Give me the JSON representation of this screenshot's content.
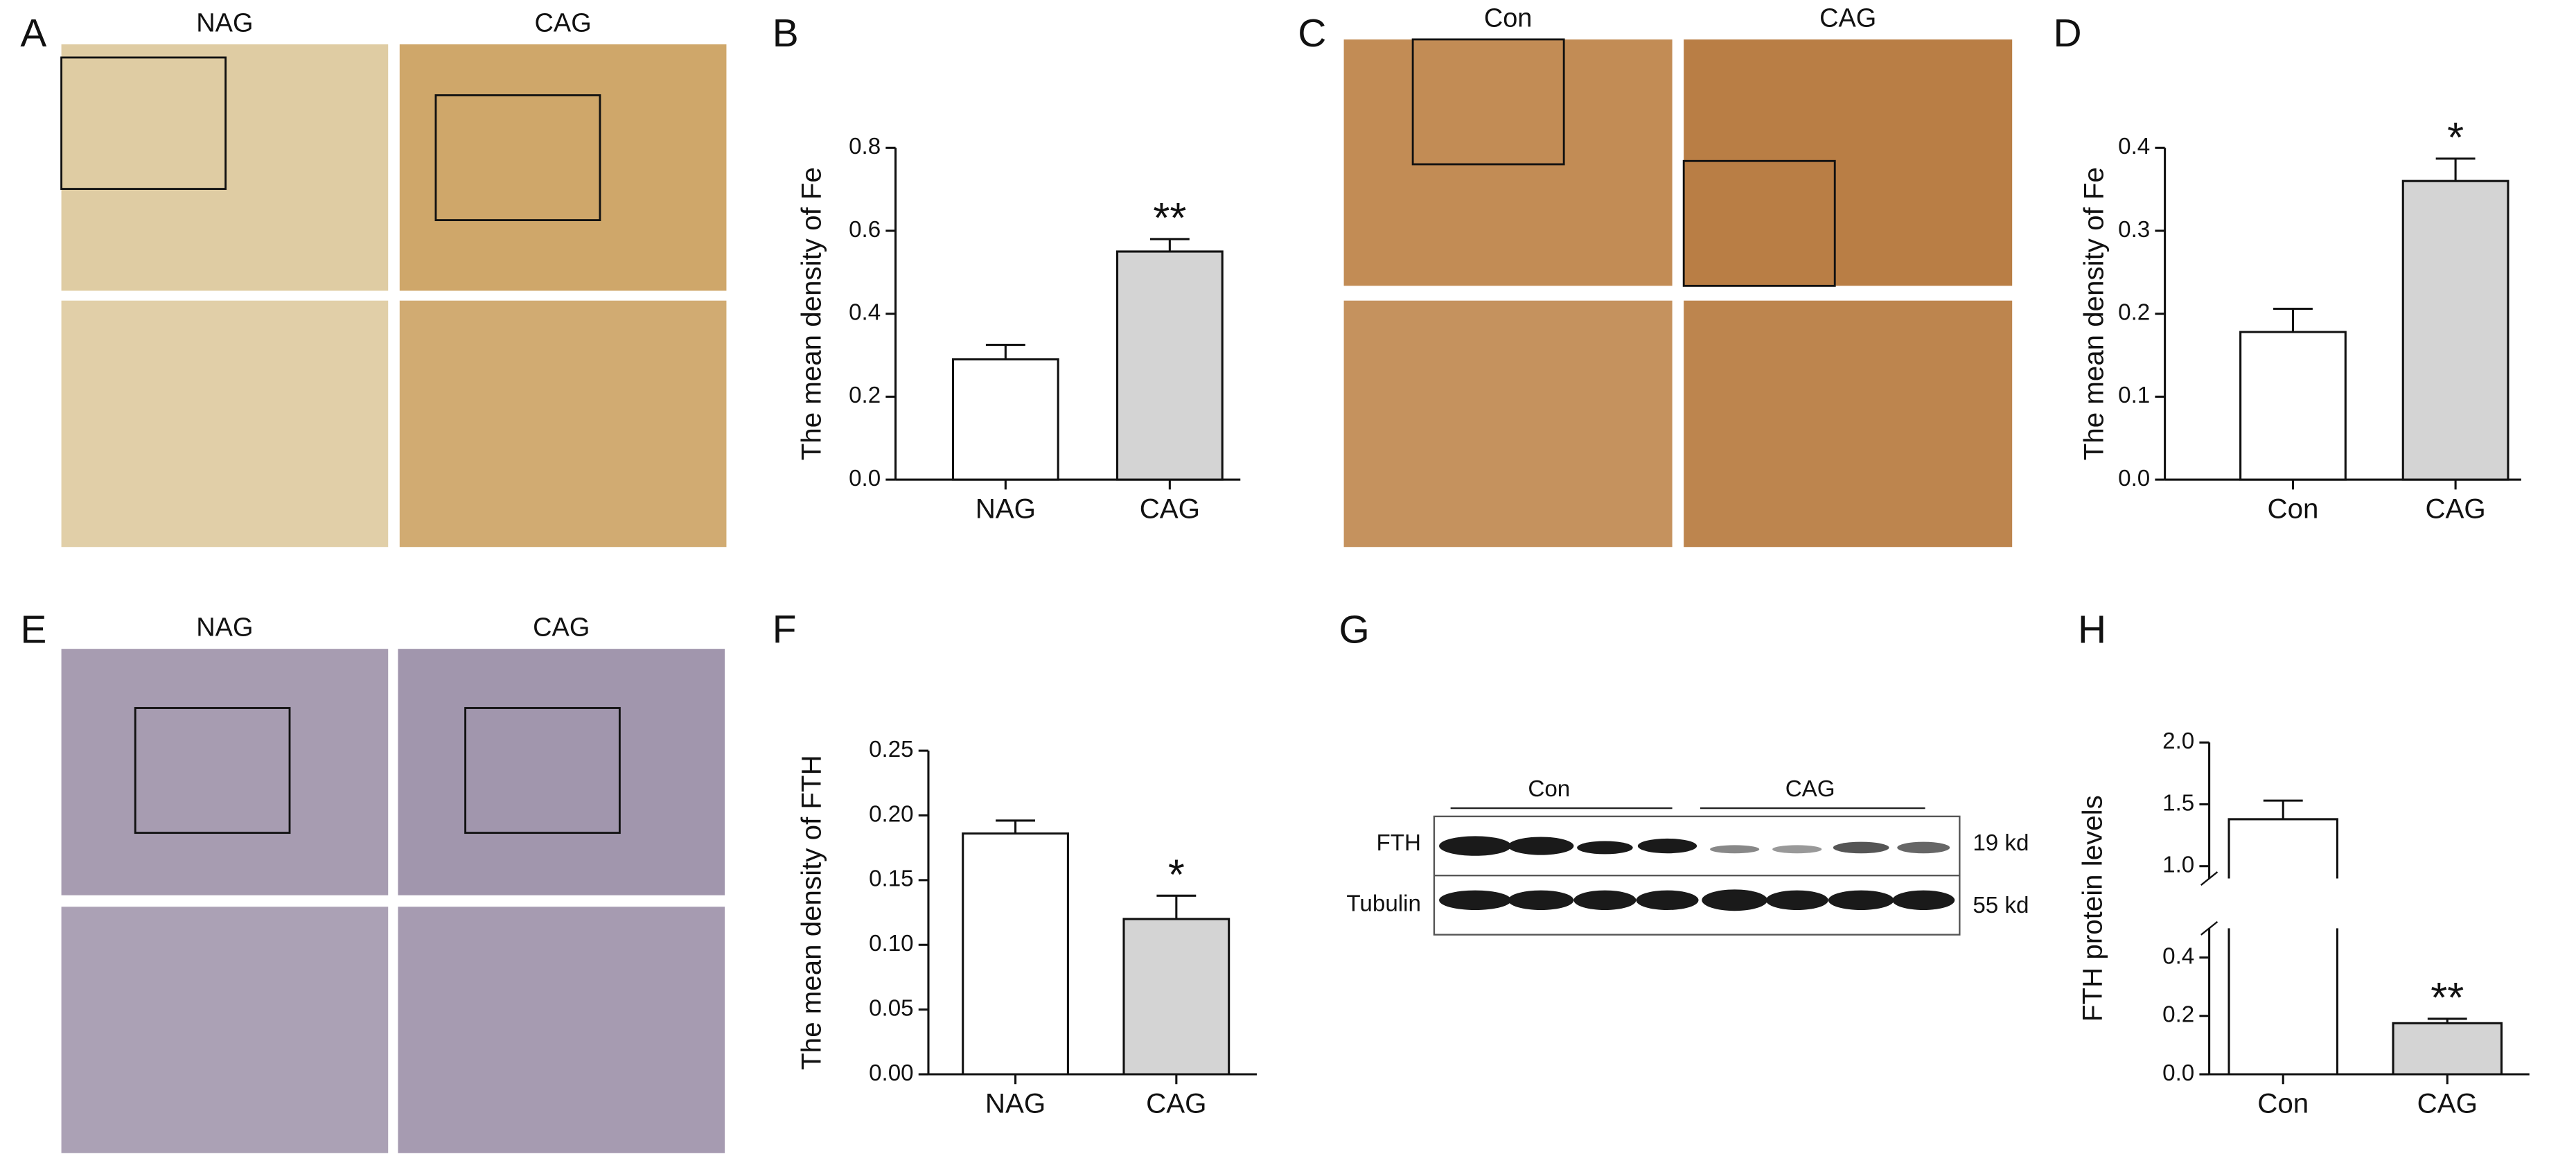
{
  "panels": [
    "A",
    "B",
    "C",
    "D",
    "E",
    "F",
    "G",
    "H"
  ],
  "micrographs": [
    {
      "labels": [
        "NAG",
        "CAG"
      ],
      "colors": [
        "#dfcca3",
        "#cfa76a"
      ]
    },
    {
      "labels": [
        "Con",
        "CAG"
      ],
      "colors": [
        "#c28c55",
        "#b97e45"
      ]
    },
    {
      "labels": [
        "NAG",
        "CAG"
      ],
      "colors": [
        "#a79cb1",
        "#a196ad"
      ]
    }
  ],
  "blot": {
    "groups": [
      "Con",
      "CAG"
    ],
    "rows": [
      "FTH",
      "Tubulin"
    ],
    "sizes": [
      "19 kd",
      "55 kd"
    ]
  },
  "chart_data": [
    {
      "type": "bar",
      "ylabel": "The mean density of Fe",
      "categories": [
        "NAG",
        "CAG"
      ],
      "values": [
        0.29,
        0.55
      ],
      "errors": [
        0.035,
        0.03
      ],
      "colors": [
        "#ffffff",
        "#d4d4d4"
      ],
      "ylim": [
        0,
        0.8
      ],
      "yticks": [
        {
          "value": 0,
          "label": "0.0"
        },
        0.2,
        0.4,
        0.6,
        0.8
      ],
      "annotation": {
        "index": 1,
        "text": "**"
      }
    },
    {
      "type": "bar",
      "ylabel": "The mean density of Fe",
      "categories": [
        "Con",
        "CAG"
      ],
      "values": [
        0.178,
        0.36
      ],
      "errors": [
        0.028,
        0.027
      ],
      "colors": [
        "#ffffff",
        "#d4d4d4"
      ],
      "ylim": [
        0,
        0.4
      ],
      "yticks": [
        {
          "value": 0,
          "label": "0.0"
        },
        0.1,
        0.2,
        0.3,
        0.4
      ],
      "annotation": {
        "index": 1,
        "text": "*"
      }
    },
    {
      "type": "bar",
      "ylabel": "The mean density of FTH",
      "categories": [
        "NAG",
        "CAG"
      ],
      "values": [
        0.186,
        0.12
      ],
      "errors": [
        0.01,
        0.018
      ],
      "colors": [
        "#ffffff",
        "#d4d4d4"
      ],
      "ylim": [
        0,
        0.25
      ],
      "yticks": [
        {
          "value": 0,
          "label": "0.00"
        },
        0.05,
        {
          "value": 0.1,
          "label": "0.10"
        },
        0.15,
        {
          "value": 0.2,
          "label": "0.20"
        },
        0.25
      ],
      "annotation": {
        "index": 1,
        "text": "*"
      }
    },
    {
      "type": "bar",
      "ylabel": "FTH protein levels",
      "categories": [
        "Con",
        "CAG"
      ],
      "values": [
        1.38,
        0.175
      ],
      "errors": [
        0.15,
        0.015
      ],
      "colors": [
        "#ffffff",
        "#d4d4d4"
      ],
      "ylim": [
        0,
        2.0
      ],
      "ybreak": [
        0.5,
        0.9
      ],
      "yticks": [
        {
          "value": 0,
          "label": "0.0"
        },
        0.2,
        0.4,
        {
          "value": 1,
          "label": "1.0"
        },
        1.5,
        {
          "value": 2,
          "label": "2.0"
        }
      ],
      "annotation": {
        "index": 1,
        "text": "**"
      }
    }
  ]
}
